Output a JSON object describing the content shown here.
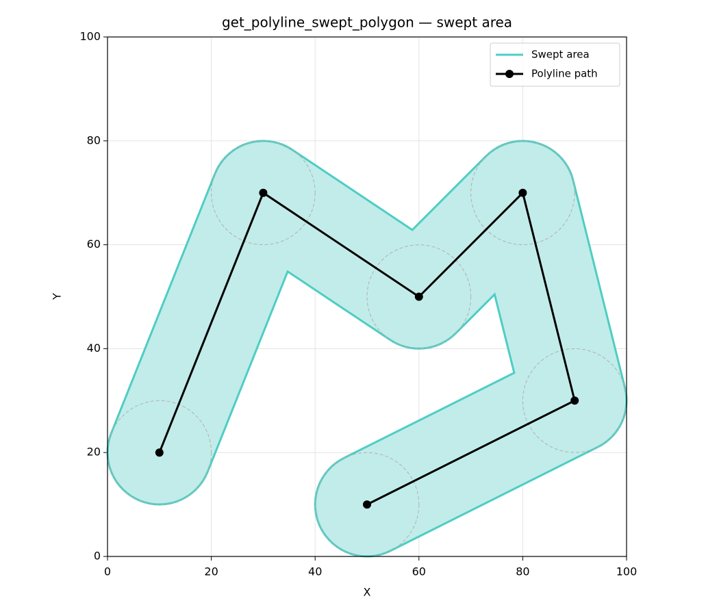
{
  "chart_data": {
    "type": "line",
    "title": "get_polyline_swept_polygon — swept area",
    "xlabel": "X",
    "ylabel": "Y",
    "xlim": [
      0,
      100
    ],
    "ylim": [
      0,
      100
    ],
    "xticks": [
      0,
      20,
      40,
      60,
      80,
      100
    ],
    "yticks": [
      0,
      20,
      40,
      60,
      80,
      100
    ],
    "grid": true,
    "legend": "upper right",
    "series": [
      {
        "name": "Swept area",
        "color": "#4ecdc4",
        "radius": 10
      },
      {
        "name": "Polyline path",
        "color": "#000000",
        "x": [
          10,
          30,
          60,
          80,
          90,
          50
        ],
        "y": [
          20,
          70,
          50,
          70,
          30,
          10
        ]
      }
    ]
  }
}
